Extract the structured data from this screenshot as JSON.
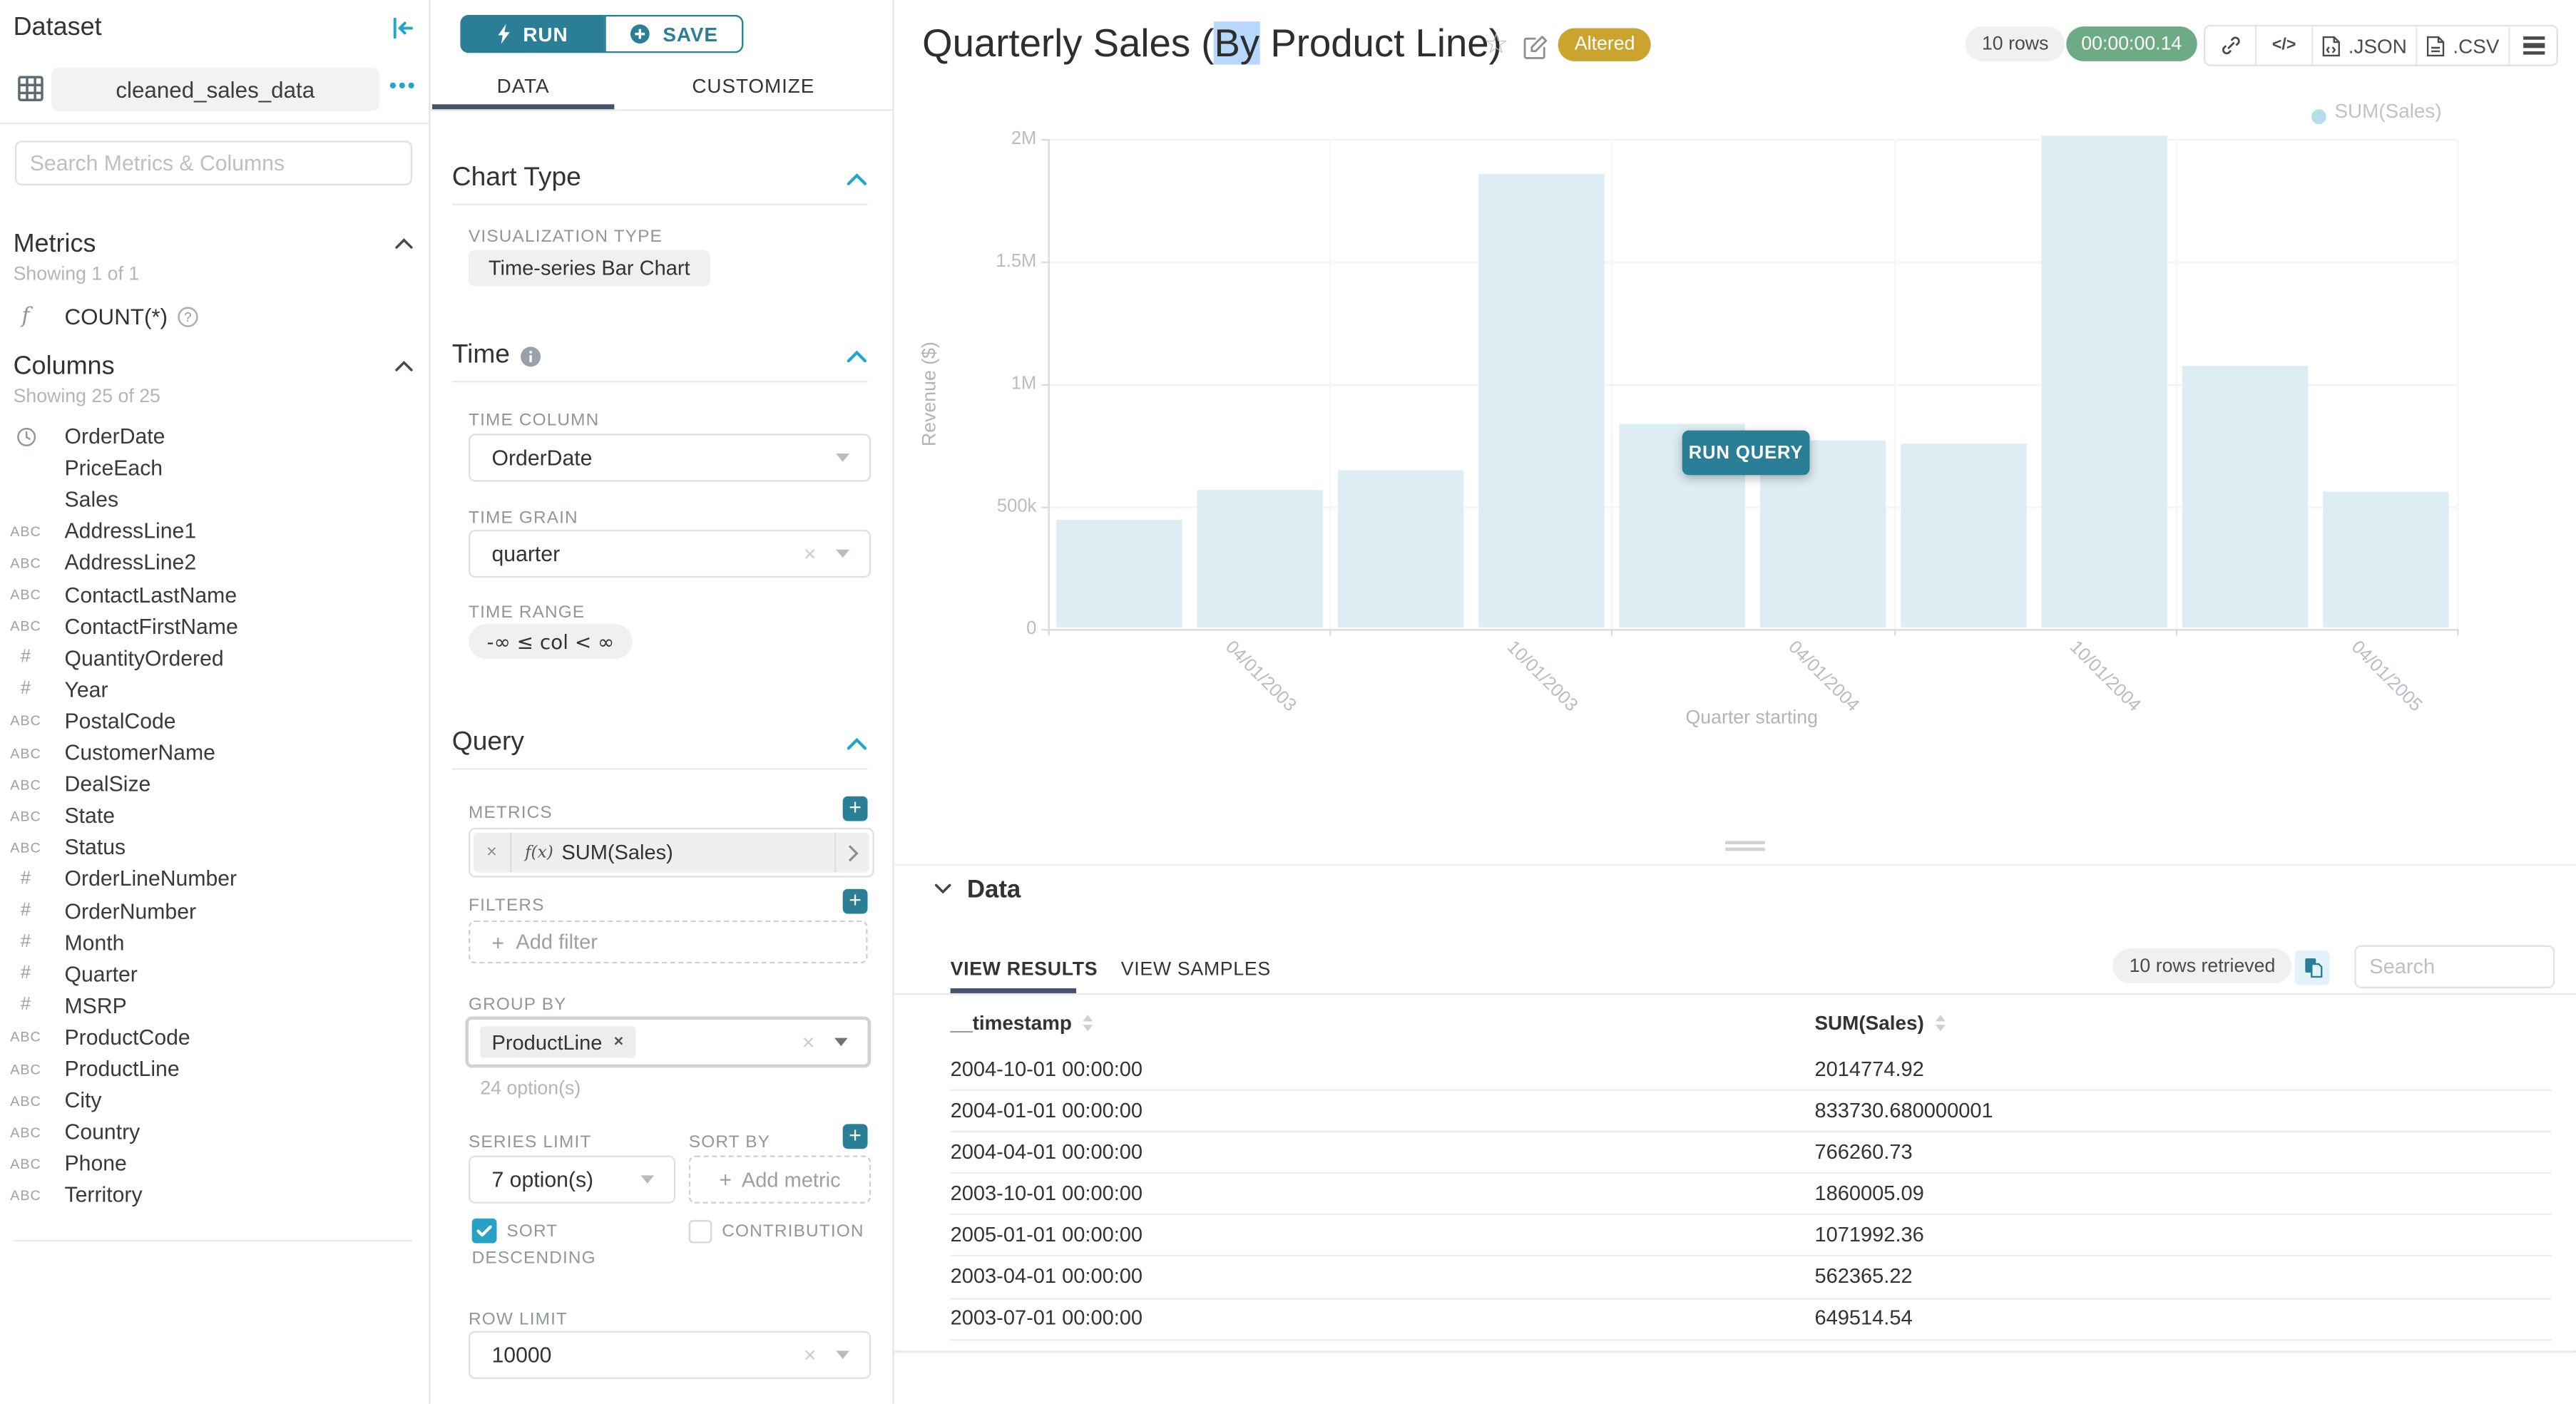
{
  "colors": {
    "accent": "#20a7c9",
    "accent_dark": "#2a7f96",
    "altered_badge": "#cba42f",
    "timer_badge": "#6cab84",
    "tab_underline": "#47536b",
    "bar": "#ddedf4",
    "selection": "#b7d8fb"
  },
  "sidebar": {
    "title": "Dataset",
    "dataset_name": "cleaned_sales_data",
    "search_placeholder": "Search Metrics & Columns",
    "metrics": {
      "title": "Metrics",
      "showing": "Showing 1 of 1",
      "items": [
        {
          "icon": "function-icon",
          "label": "COUNT(*)"
        }
      ]
    },
    "columns": {
      "title": "Columns",
      "showing": "Showing 25 of 25",
      "items": [
        {
          "type": "time",
          "name": "OrderDate"
        },
        {
          "type": "none",
          "name": "PriceEach"
        },
        {
          "type": "none",
          "name": "Sales"
        },
        {
          "type": "text",
          "name": "AddressLine1"
        },
        {
          "type": "text",
          "name": "AddressLine2"
        },
        {
          "type": "text",
          "name": "ContactLastName"
        },
        {
          "type": "text",
          "name": "ContactFirstName"
        },
        {
          "type": "num",
          "name": "QuantityOrdered"
        },
        {
          "type": "num",
          "name": "Year"
        },
        {
          "type": "text",
          "name": "PostalCode"
        },
        {
          "type": "text",
          "name": "CustomerName"
        },
        {
          "type": "text",
          "name": "DealSize"
        },
        {
          "type": "text",
          "name": "State"
        },
        {
          "type": "text",
          "name": "Status"
        },
        {
          "type": "num",
          "name": "OrderLineNumber"
        },
        {
          "type": "num",
          "name": "OrderNumber"
        },
        {
          "type": "num",
          "name": "Month"
        },
        {
          "type": "num",
          "name": "Quarter"
        },
        {
          "type": "num",
          "name": "MSRP"
        },
        {
          "type": "text",
          "name": "ProductCode"
        },
        {
          "type": "text",
          "name": "ProductLine"
        },
        {
          "type": "text",
          "name": "City"
        },
        {
          "type": "text",
          "name": "Country"
        },
        {
          "type": "text",
          "name": "Phone"
        },
        {
          "type": "text",
          "name": "Territory"
        }
      ]
    }
  },
  "controls": {
    "run_label": "RUN",
    "save_label": "SAVE",
    "tabs": [
      "DATA",
      "CUSTOMIZE"
    ],
    "chart_type": {
      "section": "Chart Type",
      "viz_label": "VISUALIZATION TYPE",
      "viz_value": "Time-series Bar Chart"
    },
    "time": {
      "section": "Time",
      "column_label": "TIME COLUMN",
      "column_value": "OrderDate",
      "grain_label": "TIME GRAIN",
      "grain_value": "quarter",
      "range_label": "TIME RANGE",
      "range_value": "-∞ ≤ col < ∞"
    },
    "query": {
      "section": "Query",
      "metrics_label": "METRICS",
      "metric_fx": "f(x)",
      "metric_chip": "SUM(Sales)",
      "filters_label": "FILTERS",
      "add_filter": "Add filter",
      "groupby_label": "GROUP BY",
      "groupby_chip": "ProductLine",
      "options_hint": "24 option(s)",
      "series_limit_label": "SERIES LIMIT",
      "series_limit_value": "7 option(s)",
      "sort_by_label": "SORT BY",
      "add_metric": "Add metric",
      "sort_descending_label": "SORT DESCENDING",
      "contribution_label": "CONTRIBUTION",
      "row_limit_label": "ROW LIMIT",
      "row_limit_value": "10000"
    }
  },
  "header": {
    "title_prefix": "Quarterly Sales (",
    "title_highlight": "By",
    "title_suffix": " Product Line)",
    "altered_badge": "Altered",
    "rows_badge": "10 rows",
    "timer_badge": "00:00:00.14",
    "export_json": ".JSON",
    "export_csv": ".CSV"
  },
  "chart_data": {
    "type": "bar",
    "legend": [
      "SUM(Sales)"
    ],
    "legend_position": "top-right",
    "x": [
      "2003-01-01",
      "2003-04-01",
      "2003-07-01",
      "2003-10-01",
      "2004-01-01",
      "2004-04-01",
      "2004-07-01",
      "2004-10-01",
      "2005-01-01",
      "2005-04-01"
    ],
    "values": [
      445000,
      562365.22,
      649514.54,
      1860005.09,
      833730.68,
      766260.73,
      752000,
      2014774.92,
      1071992.36,
      561000
    ],
    "title": "Quarterly Sales (By Product Line)",
    "xlabel": "Quarter starting",
    "ylabel": "Revenue ($)",
    "ylim": [
      0,
      2000000
    ],
    "yticks": [
      "0",
      "500k",
      "1M",
      "1.5M",
      "2M"
    ],
    "x_tick_labels": [
      "04/01/2003",
      "10/01/2003",
      "04/01/2004",
      "10/01/2004",
      "04/01/2005"
    ],
    "x_tick_indices": [
      1,
      3,
      5,
      7,
      9
    ],
    "grid": true,
    "overlay_button": "RUN QUERY"
  },
  "results": {
    "section_title": "Data",
    "tabs": [
      "VIEW RESULTS",
      "VIEW SAMPLES"
    ],
    "rows_retrieved": "10 rows retrieved",
    "search_placeholder": "Search",
    "columns": [
      "__timestamp",
      "SUM(Sales)"
    ],
    "rows": [
      [
        "2004-10-01 00:00:00",
        "2014774.92"
      ],
      [
        "2004-01-01 00:00:00",
        "833730.680000001"
      ],
      [
        "2004-04-01 00:00:00",
        "766260.73"
      ],
      [
        "2003-10-01 00:00:00",
        "1860005.09"
      ],
      [
        "2005-01-01 00:00:00",
        "1071992.36"
      ],
      [
        "2003-04-01 00:00:00",
        "562365.22"
      ],
      [
        "2003-07-01 00:00:00",
        "649514.54"
      ]
    ]
  }
}
